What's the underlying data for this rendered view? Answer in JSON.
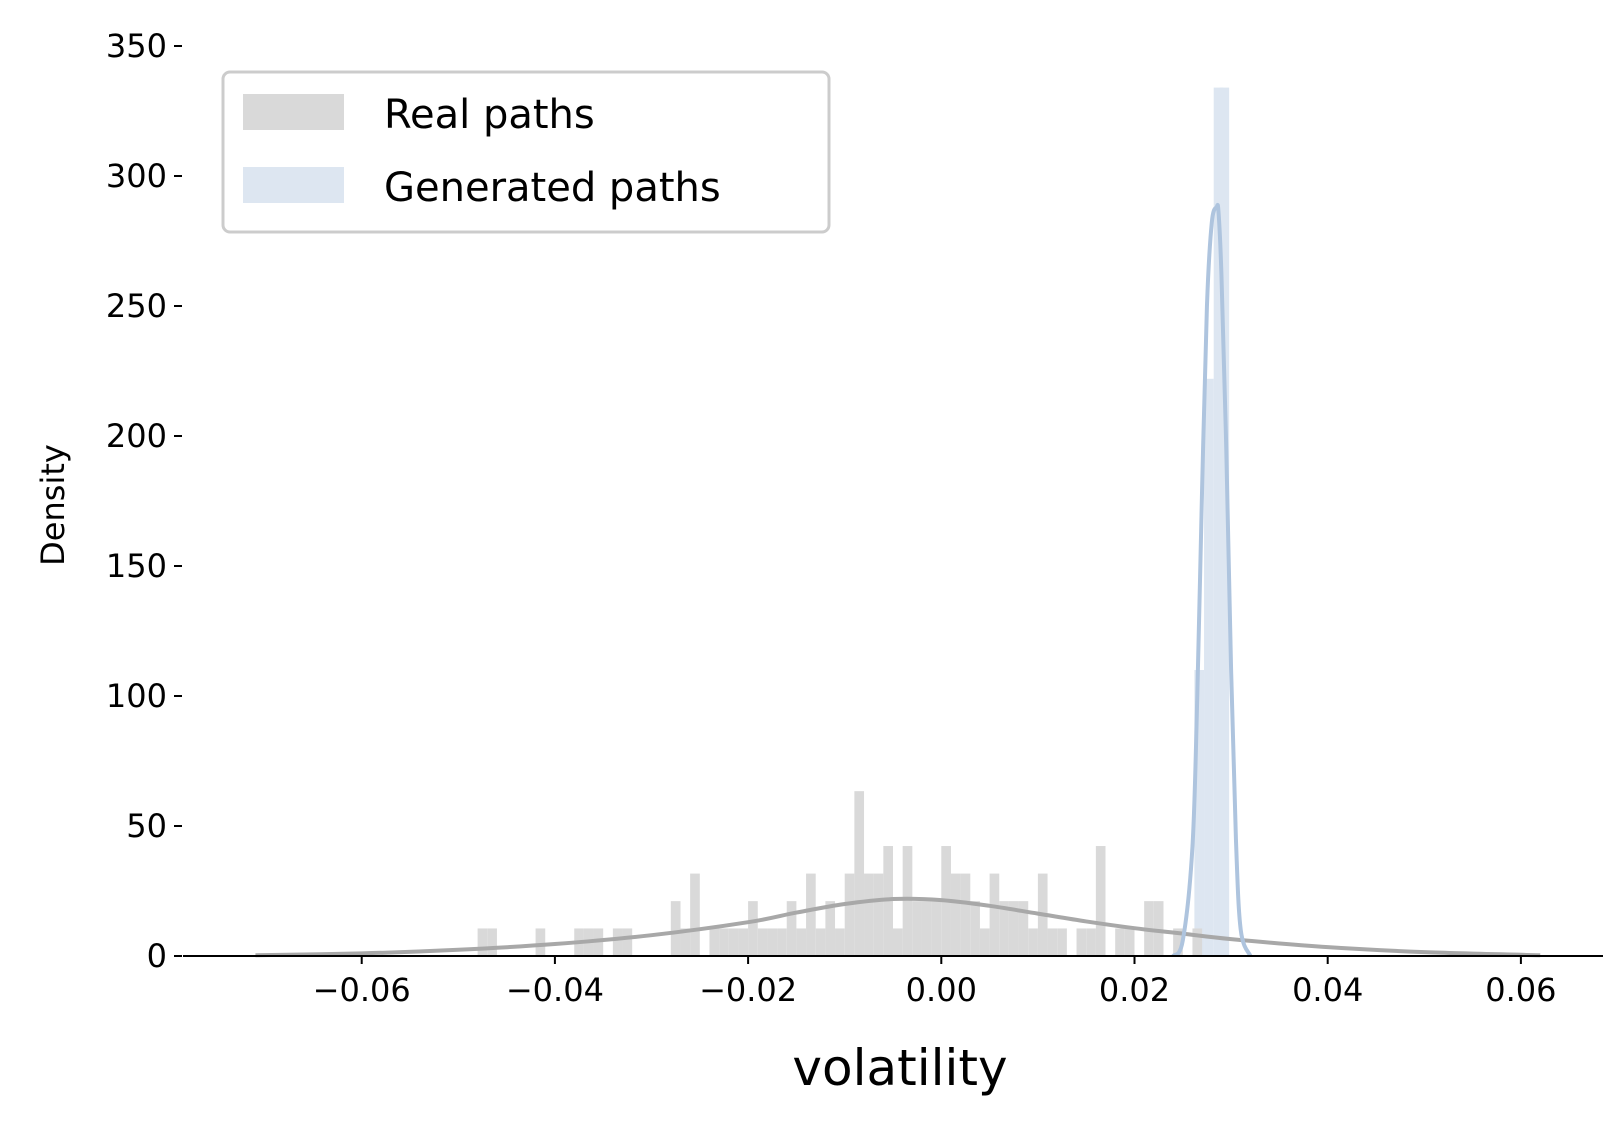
{
  "chart_data": {
    "type": "histogram",
    "title": "",
    "xlabel": "volatility",
    "ylabel": "Density",
    "xlim": [
      -0.0785,
      0.0685
    ],
    "ylim": [
      0,
      350
    ],
    "xticks": [
      -0.06,
      -0.04,
      -0.02,
      0.0,
      0.02,
      0.04,
      0.06
    ],
    "xtick_labels": [
      "−0.06",
      "−0.04",
      "−0.02",
      "0.00",
      "0.02",
      "0.04",
      "0.06"
    ],
    "yticks": [
      0,
      50,
      100,
      150,
      200,
      250,
      300,
      350
    ],
    "ytick_labels": [
      "0",
      "50",
      "100",
      "150",
      "200",
      "250",
      "300",
      "350"
    ],
    "grid": false,
    "legend_position": "top-left",
    "colors": {
      "real_bar": "#d9d9d9",
      "real_kde": "#a8a8a8",
      "generated_bar": "#dde6f1",
      "generated_kde": "#aec4de",
      "axis": "#000000"
    },
    "series": [
      {
        "name": "Real paths",
        "bin_width": 0.001,
        "bins": [
          [
            -0.048,
            10.6
          ],
          [
            -0.047,
            10.6
          ],
          [
            -0.042,
            10.6
          ],
          [
            -0.038,
            10.6
          ],
          [
            -0.037,
            10.6
          ],
          [
            -0.036,
            10.6
          ],
          [
            -0.034,
            10.6
          ],
          [
            -0.033,
            10.6
          ],
          [
            -0.028,
            21.1
          ],
          [
            -0.027,
            10.6
          ],
          [
            -0.026,
            31.7
          ],
          [
            -0.024,
            10.6
          ],
          [
            -0.023,
            10.6
          ],
          [
            -0.022,
            10.6
          ],
          [
            -0.021,
            10.6
          ],
          [
            -0.02,
            21.1
          ],
          [
            -0.019,
            10.6
          ],
          [
            -0.018,
            10.6
          ],
          [
            -0.017,
            10.6
          ],
          [
            -0.016,
            21.1
          ],
          [
            -0.015,
            10.6
          ],
          [
            -0.014,
            31.7
          ],
          [
            -0.013,
            10.6
          ],
          [
            -0.012,
            21.1
          ],
          [
            -0.011,
            10.6
          ],
          [
            -0.01,
            31.7
          ],
          [
            -0.009,
            63.4
          ],
          [
            -0.008,
            31.7
          ],
          [
            -0.007,
            31.7
          ],
          [
            -0.006,
            42.3
          ],
          [
            -0.005,
            10.6
          ],
          [
            -0.004,
            42.3
          ],
          [
            -0.003,
            21.1
          ],
          [
            -0.002,
            21.1
          ],
          [
            -0.001,
            21.1
          ],
          [
            0.0,
            42.3
          ],
          [
            0.001,
            31.7
          ],
          [
            0.002,
            31.7
          ],
          [
            0.003,
            21.1
          ],
          [
            0.004,
            10.6
          ],
          [
            0.005,
            31.7
          ],
          [
            0.006,
            21.1
          ],
          [
            0.007,
            21.1
          ],
          [
            0.008,
            21.1
          ],
          [
            0.009,
            10.6
          ],
          [
            0.01,
            31.7
          ],
          [
            0.011,
            10.6
          ],
          [
            0.012,
            10.6
          ],
          [
            0.014,
            10.6
          ],
          [
            0.015,
            10.6
          ],
          [
            0.016,
            42.3
          ],
          [
            0.018,
            10.6
          ],
          [
            0.019,
            10.6
          ],
          [
            0.021,
            21.1
          ],
          [
            0.022,
            21.1
          ],
          [
            0.024,
            10.6
          ],
          [
            0.026,
            10.6
          ]
        ],
        "kde": {
          "x": [
            -0.071,
            -0.06,
            -0.05,
            -0.04,
            -0.03,
            -0.02,
            -0.015,
            -0.01,
            -0.005,
            0.0,
            0.005,
            0.01,
            0.015,
            0.02,
            0.025,
            0.03,
            0.04,
            0.05,
            0.062
          ],
          "y": [
            0.3,
            1.0,
            2.4,
            4.6,
            8.0,
            13.0,
            16.7,
            20.0,
            21.9,
            21.5,
            19.3,
            16.3,
            13.3,
            10.7,
            8.6,
            6.5,
            3.4,
            1.5,
            0.3
          ]
        }
      },
      {
        "name": "Generated paths",
        "bin_width": 0.001,
        "bins": [
          [
            0.0262,
            110.0
          ],
          [
            0.0272,
            222.0
          ],
          [
            0.0282,
            334.0
          ],
          [
            0.0288,
            334.0
          ]
        ],
        "kde": {
          "x": [
            0.024,
            0.025,
            0.026,
            0.0265,
            0.027,
            0.0275,
            0.028,
            0.0285,
            0.0287,
            0.029,
            0.0295,
            0.03,
            0.0305,
            0.031,
            0.032
          ],
          "y": [
            0,
            6.0,
            42.0,
            100.0,
            180.0,
            250.0,
            282.0,
            288.0,
            286.0,
            262.0,
            195.0,
            110.0,
            45.0,
            10.0,
            0
          ]
        }
      }
    ]
  }
}
